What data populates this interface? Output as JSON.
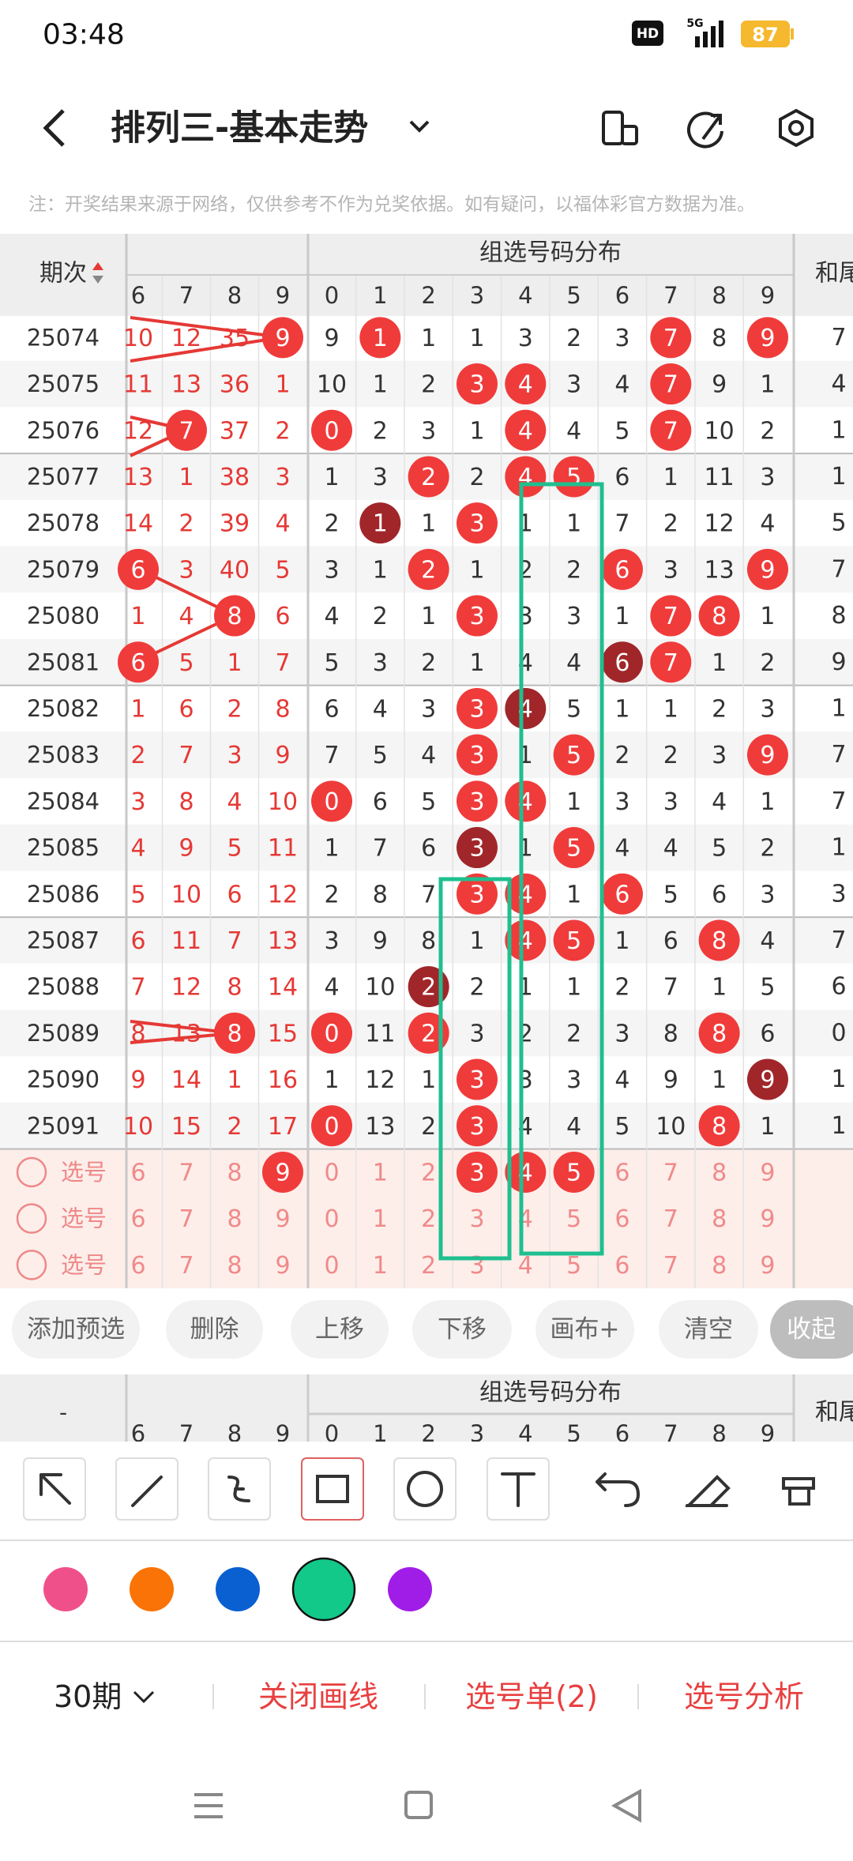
{
  "status": {
    "time": "03:48",
    "hd": "HD",
    "network": "5G",
    "battery": 87
  },
  "header": {
    "title": "排列三-基本走势"
  },
  "note": "注：开奖结果来源于网络，仅供参考不作为兑奖依据。如有疑问，以福体彩官方数据为准。",
  "table": {
    "period_header": "期次",
    "group_header": "组选号码分布",
    "sum_header": "和尾",
    "left_digits": [
      6,
      7,
      8,
      9
    ],
    "group_digits": [
      0,
      1,
      2,
      3,
      4,
      5,
      6,
      7,
      8,
      9
    ],
    "rows": [
      {
        "period": "25074",
        "left": [
          10,
          12,
          35,
          {
            "value": 9,
            "ball": "red"
          }
        ],
        "group": [
          9,
          {
            "value": 1,
            "ball": "red"
          },
          1,
          1,
          3,
          2,
          3,
          {
            "value": 7,
            "ball": "red"
          },
          8,
          {
            "value": 9,
            "ball": "red"
          }
        ],
        "sum": 7
      },
      {
        "period": "25075",
        "left": [
          11,
          13,
          36,
          1
        ],
        "group": [
          10,
          1,
          2,
          {
            "value": 3,
            "ball": "red"
          },
          {
            "value": 4,
            "ball": "red"
          },
          3,
          4,
          {
            "value": 7,
            "ball": "red"
          },
          9,
          1
        ],
        "sum": 4
      },
      {
        "period": "25076",
        "left": [
          12,
          {
            "value": 7,
            "ball": "red"
          },
          37,
          2
        ],
        "group": [
          {
            "value": 0,
            "ball": "red"
          },
          2,
          3,
          1,
          {
            "value": 4,
            "ball": "red"
          },
          4,
          5,
          {
            "value": 7,
            "ball": "red"
          },
          10,
          2
        ],
        "sum": 1
      },
      {
        "period": "25077",
        "left": [
          13,
          1,
          38,
          3
        ],
        "group": [
          1,
          3,
          {
            "value": 2,
            "ball": "red"
          },
          2,
          {
            "value": 4,
            "ball": "red"
          },
          {
            "value": 5,
            "ball": "red"
          },
          6,
          1,
          11,
          3
        ],
        "sum": 1
      },
      {
        "period": "25078",
        "left": [
          14,
          2,
          39,
          4
        ],
        "group": [
          2,
          {
            "value": 1,
            "ball": "dark"
          },
          1,
          {
            "value": 3,
            "ball": "red"
          },
          1,
          1,
          7,
          2,
          12,
          4
        ],
        "sum": 5
      },
      {
        "period": "25079",
        "left": [
          {
            "value": 6,
            "ball": "red"
          },
          3,
          40,
          5
        ],
        "group": [
          3,
          1,
          {
            "value": 2,
            "ball": "red"
          },
          1,
          2,
          2,
          {
            "value": 6,
            "ball": "red"
          },
          3,
          13,
          {
            "value": 9,
            "ball": "red"
          }
        ],
        "sum": 7
      },
      {
        "period": "25080",
        "left": [
          1,
          4,
          {
            "value": 8,
            "ball": "red"
          },
          6
        ],
        "group": [
          4,
          2,
          1,
          {
            "value": 3,
            "ball": "red"
          },
          3,
          3,
          1,
          {
            "value": 7,
            "ball": "red"
          },
          {
            "value": 8,
            "ball": "red"
          },
          1
        ],
        "sum": 8
      },
      {
        "period": "25081",
        "left": [
          {
            "value": 6,
            "ball": "red"
          },
          5,
          1,
          7
        ],
        "group": [
          5,
          3,
          2,
          1,
          4,
          4,
          {
            "value": 6,
            "ball": "dark"
          },
          {
            "value": 7,
            "ball": "red"
          },
          1,
          2
        ],
        "sum": 9
      },
      {
        "period": "25082",
        "left": [
          1,
          6,
          2,
          8
        ],
        "group": [
          6,
          4,
          3,
          {
            "value": 3,
            "ball": "red"
          },
          {
            "value": 4,
            "ball": "dark"
          },
          5,
          1,
          1,
          2,
          3
        ],
        "sum": 1
      },
      {
        "period": "25083",
        "left": [
          2,
          7,
          3,
          9
        ],
        "group": [
          7,
          5,
          4,
          {
            "value": 3,
            "ball": "red"
          },
          1,
          {
            "value": 5,
            "ball": "red"
          },
          2,
          2,
          3,
          {
            "value": 9,
            "ball": "red"
          }
        ],
        "sum": 7
      },
      {
        "period": "25084",
        "left": [
          3,
          8,
          4,
          10
        ],
        "group": [
          {
            "value": 0,
            "ball": "red"
          },
          6,
          5,
          {
            "value": 3,
            "ball": "red"
          },
          {
            "value": 4,
            "ball": "red"
          },
          1,
          3,
          3,
          4,
          1
        ],
        "sum": 7
      },
      {
        "period": "25085",
        "left": [
          4,
          9,
          5,
          11
        ],
        "group": [
          1,
          7,
          6,
          {
            "value": 3,
            "ball": "dark"
          },
          1,
          {
            "value": 5,
            "ball": "red"
          },
          4,
          4,
          5,
          2
        ],
        "sum": 1
      },
      {
        "period": "25086",
        "left": [
          5,
          10,
          6,
          12
        ],
        "group": [
          2,
          8,
          7,
          {
            "value": 3,
            "ball": "red"
          },
          {
            "value": 4,
            "ball": "red"
          },
          1,
          {
            "value": 6,
            "ball": "red"
          },
          5,
          6,
          3
        ],
        "sum": 3
      },
      {
        "period": "25087",
        "left": [
          6,
          11,
          7,
          13
        ],
        "group": [
          3,
          9,
          8,
          1,
          {
            "value": 4,
            "ball": "red"
          },
          {
            "value": 5,
            "ball": "red"
          },
          1,
          6,
          {
            "value": 8,
            "ball": "red"
          },
          4
        ],
        "sum": 7
      },
      {
        "period": "25088",
        "left": [
          7,
          12,
          8,
          14
        ],
        "group": [
          4,
          10,
          {
            "value": 2,
            "ball": "dark"
          },
          2,
          1,
          1,
          2,
          7,
          1,
          5
        ],
        "sum": 6
      },
      {
        "period": "25089",
        "left": [
          8,
          13,
          {
            "value": 8,
            "ball": "red"
          },
          15
        ],
        "group": [
          {
            "value": 0,
            "ball": "red"
          },
          11,
          {
            "value": 2,
            "ball": "red"
          },
          3,
          2,
          2,
          3,
          8,
          {
            "value": 8,
            "ball": "red"
          },
          6
        ],
        "sum": 0
      },
      {
        "period": "25090",
        "left": [
          9,
          14,
          1,
          16
        ],
        "group": [
          1,
          12,
          1,
          {
            "value": 3,
            "ball": "red"
          },
          3,
          3,
          4,
          9,
          1,
          {
            "value": 9,
            "ball": "dark"
          }
        ],
        "sum": 1
      },
      {
        "period": "25091",
        "left": [
          10,
          15,
          2,
          17
        ],
        "group": [
          {
            "value": 0,
            "ball": "red"
          },
          13,
          2,
          {
            "value": 3,
            "ball": "red"
          },
          4,
          4,
          5,
          10,
          {
            "value": 8,
            "ball": "red"
          },
          1
        ],
        "sum": 1
      }
    ],
    "select_rows": [
      {
        "label": "选号",
        "left": [
          6,
          7,
          8,
          {
            "value": 9,
            "ball": "red"
          }
        ],
        "group": [
          0,
          1,
          2,
          {
            "value": 3,
            "ball": "red"
          },
          {
            "value": 4,
            "ball": "red"
          },
          {
            "value": 5,
            "ball": "red"
          },
          6,
          7,
          8,
          9
        ]
      },
      {
        "label": "选号",
        "left": [
          6,
          7,
          8,
          9
        ],
        "group": [
          0,
          1,
          2,
          3,
          4,
          5,
          6,
          7,
          8,
          9
        ]
      },
      {
        "label": "选号",
        "left": [
          6,
          7,
          8,
          9
        ],
        "group": [
          0,
          1,
          2,
          3,
          4,
          5,
          6,
          7,
          8,
          9
        ]
      }
    ]
  },
  "buttons": [
    "添加预选",
    "删除",
    "上移",
    "下移",
    "画布+",
    "清空",
    "收起"
  ],
  "second_header": {
    "dash": "-",
    "group_header": "组选号码分布",
    "sum_header": "和尾",
    "left_digits": [
      6,
      7,
      8,
      9
    ],
    "group_digits": [
      0,
      1,
      2,
      3,
      4,
      5,
      6,
      7,
      8,
      9
    ]
  },
  "swatches": [
    "#f0508a",
    "#f97306",
    "#0a5fd1",
    "#12c98a",
    "#a01de8"
  ],
  "selected_swatch": 3,
  "bottom": {
    "period": "30期",
    "close": "关闭画线",
    "list": "选号单(2)",
    "analysis": "选号分析"
  }
}
